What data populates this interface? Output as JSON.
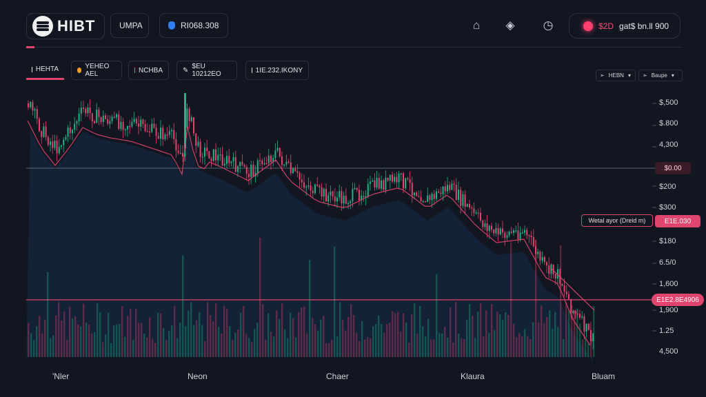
{
  "header": {
    "logo_text": "HIBT",
    "pill_one": "UMPA",
    "pill_two": "RI068.308",
    "alert_value": "$2D",
    "alert_text": "gat$ bn.ll 900"
  },
  "tabs": [
    {
      "label": "HEHTA",
      "color": "#e6e8ee"
    },
    {
      "label": "YEHEO AEL",
      "color": "#f39c2a"
    },
    {
      "label": "NCHBA",
      "color": "#2ebf73"
    },
    {
      "label": "$EU 10212EO",
      "color": "#e6e8ee"
    },
    {
      "label": "1IE.232.IKONY",
      "color": "#e6e8ee"
    }
  ],
  "dropdowns": [
    "HEBN",
    "Baupe"
  ],
  "y_axis": [
    "$,500",
    "$.800",
    "4,300",
    "$0.00",
    "$200",
    "$300",
    "$180",
    "6.5/0",
    "1,600",
    "1,900",
    "1.25",
    "4,500"
  ],
  "annotation": "Wetal ayor (Dreid m)",
  "price_tags": {
    "upper": "E1E.030",
    "lower": "E1E2.8E4906"
  },
  "x_axis": [
    "'Nler",
    "Neon",
    "Chaer",
    "Klaura",
    "Bluam"
  ],
  "colors": {
    "bg": "#121621",
    "up": "#23b387",
    "down": "#e0456d",
    "area": "#14253a"
  },
  "chart_data": {
    "type": "candlestick",
    "ma_line_color": "#e0456d",
    "volume_bars": true
  }
}
